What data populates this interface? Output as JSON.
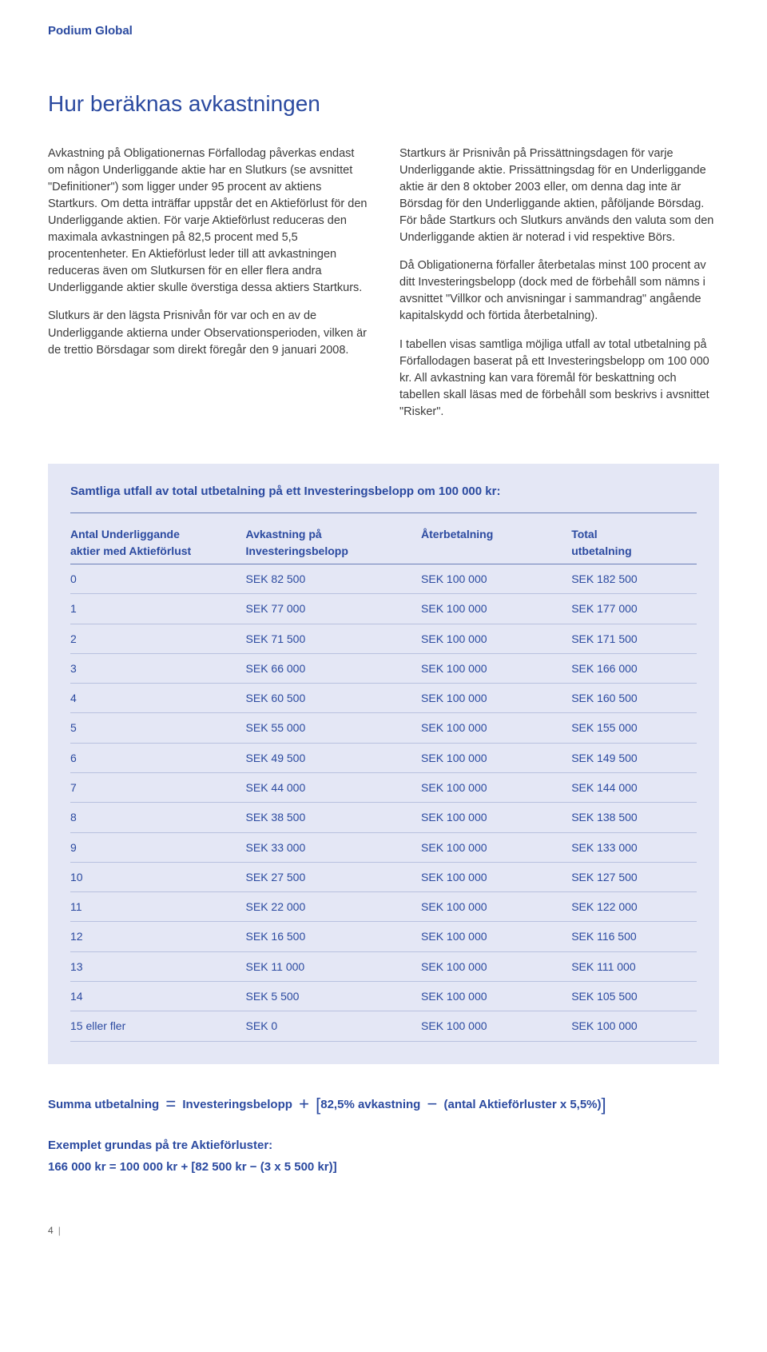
{
  "brand": "Podium Global",
  "title": "Hur beräknas avkastningen",
  "leftParas": [
    "Avkastning på Obligationernas Förfallodag påverkas endast om någon Underliggande aktie har en Slutkurs (se avsnittet \"Definitioner\") som ligger under 95 procent av aktiens Startkurs. Om detta inträffar uppstår det en Aktieförlust för den Underliggande aktien. För varje Aktieförlust reduceras den maximala avkastningen på 82,5 procent med 5,5 procentenheter. En Aktieförlust leder till att avkastningen reduceras även om Slutkursen för en eller flera andra Underliggande aktier skulle överstiga dessa aktiers Startkurs.",
    "Slutkurs är den lägsta Prisnivån för var och en av de Underliggande aktierna under Observationsperioden, vilken är de trettio Börsdagar som direkt föregår den 9 januari 2008."
  ],
  "rightParas": [
    "Startkurs är Prisnivån på Prissättningsdagen för varje Underliggande aktie. Prissättningsdag för en Underliggande aktie är den 8 oktober 2003 eller, om denna dag inte är Börsdag för den Underliggande aktien, påföljande Börsdag. För både Startkurs och Slutkurs används den valuta som den Underliggande aktien är noterad i vid respektive Börs.",
    "Då Obligationerna förfaller återbetalas minst 100 procent av ditt Investeringsbelopp (dock med de förbehåll som nämns i avsnittet \"Villkor och anvisningar i sammandrag\" angående kapitalskydd och förtida återbetalning).",
    "I tabellen visas samtliga möjliga utfall av total utbetalning på Förfallodagen baserat på ett Investeringsbelopp om 100 000 kr. All avkastning kan vara föremål för beskattning och tabellen skall läsas med de förbehåll som beskrivs i avsnittet \"Risker\"."
  ],
  "table": {
    "title": "Samtliga utfall av total utbetalning på ett Investeringsbelopp om 100 000 kr:",
    "headers": {
      "c1a": "Antal Underliggande",
      "c1b": "aktier med Aktieförlust",
      "c2a": "Avkastning på",
      "c2b": "Investeringsbelopp",
      "c3": "Återbetalning",
      "c4a": "Total",
      "c4b": "utbetalning"
    },
    "rows": [
      [
        "0",
        "SEK 82 500",
        "SEK 100 000",
        "SEK 182 500"
      ],
      [
        "1",
        "SEK 77 000",
        "SEK 100 000",
        "SEK 177 000"
      ],
      [
        "2",
        "SEK 71 500",
        "SEK 100 000",
        "SEK 171 500"
      ],
      [
        "3",
        "SEK 66 000",
        "SEK 100 000",
        "SEK 166 000"
      ],
      [
        "4",
        "SEK 60 500",
        "SEK 100 000",
        "SEK 160 500"
      ],
      [
        "5",
        "SEK 55 000",
        "SEK 100 000",
        "SEK 155 000"
      ],
      [
        "6",
        "SEK 49 500",
        "SEK 100 000",
        "SEK 149 500"
      ],
      [
        "7",
        "SEK 44 000",
        "SEK 100 000",
        "SEK 144 000"
      ],
      [
        "8",
        "SEK 38 500",
        "SEK 100 000",
        "SEK 138 500"
      ],
      [
        "9",
        "SEK 33 000",
        "SEK 100 000",
        "SEK 133 000"
      ],
      [
        "10",
        "SEK 27 500",
        "SEK 100 000",
        "SEK 127 500"
      ],
      [
        "11",
        "SEK 22 000",
        "SEK 100 000",
        "SEK 122 000"
      ],
      [
        "12",
        "SEK 16 500",
        "SEK 100 000",
        "SEK 116 500"
      ],
      [
        "13",
        "SEK 11 000",
        "SEK 100 000",
        "SEK 111 000"
      ],
      [
        "14",
        "SEK 5 500",
        "SEK 100 000",
        "SEK 105 500"
      ],
      [
        "15 eller fler",
        "SEK 0",
        "SEK 100 000",
        "SEK 100 000"
      ]
    ]
  },
  "formula": {
    "lhs": "Summa utbetalning",
    "term1": "Investeringsbelopp",
    "term2": "82,5% avkastning",
    "term3": "(antal Aktieförluster x 5,5%)"
  },
  "example": {
    "title": "Exemplet grundas på tre Aktieförluster:",
    "lhs": "166 000 kr",
    "t1": "100 000 kr",
    "t2": "82 500 kr",
    "t3": "3 x 5 500 kr"
  },
  "pageNum": "4"
}
